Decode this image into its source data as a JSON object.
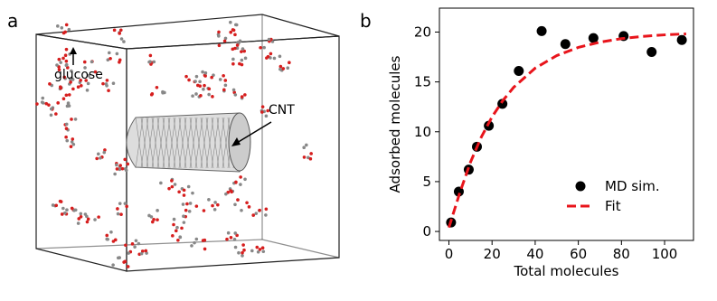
{
  "panel_a": {
    "label": "a",
    "annotations": [
      "glucose",
      "CNT"
    ]
  },
  "chart_data": {
    "type": "scatter",
    "panel_label": "b",
    "xlabel": "Total molecules",
    "ylabel": "Adsorbed molecules",
    "xlim": [
      -4.4,
      113.4
    ],
    "ylim": [
      -0.9,
      22.4
    ],
    "xticks": [
      0,
      20,
      40,
      60,
      80,
      100
    ],
    "yticks": [
      0,
      5,
      10,
      15,
      20
    ],
    "legend": "lower right",
    "series": [
      {
        "name": "MD sim.",
        "type": "scatter",
        "color": "#000000",
        "x": [
          1,
          4.6,
          9.2,
          13,
          18.5,
          24.8,
          32.4,
          43,
          54,
          67,
          81,
          94,
          108
        ],
        "values": [
          0.9,
          4.0,
          6.2,
          8.5,
          10.6,
          12.8,
          16.1,
          20.1,
          18.8,
          19.4,
          19.6,
          18.0,
          19.2
        ]
      },
      {
        "name": "Fit",
        "type": "line",
        "color": "#e8141b",
        "x": [
          0,
          5,
          10,
          15,
          20,
          25,
          30,
          40,
          50,
          60,
          70,
          80,
          90,
          100,
          110
        ],
        "values": [
          0.4,
          3.85,
          6.95,
          9.46,
          11.49,
          13.13,
          14.45,
          16.38,
          17.64,
          18.46,
          18.99,
          19.34,
          19.57,
          19.72,
          19.82
        ]
      }
    ]
  }
}
